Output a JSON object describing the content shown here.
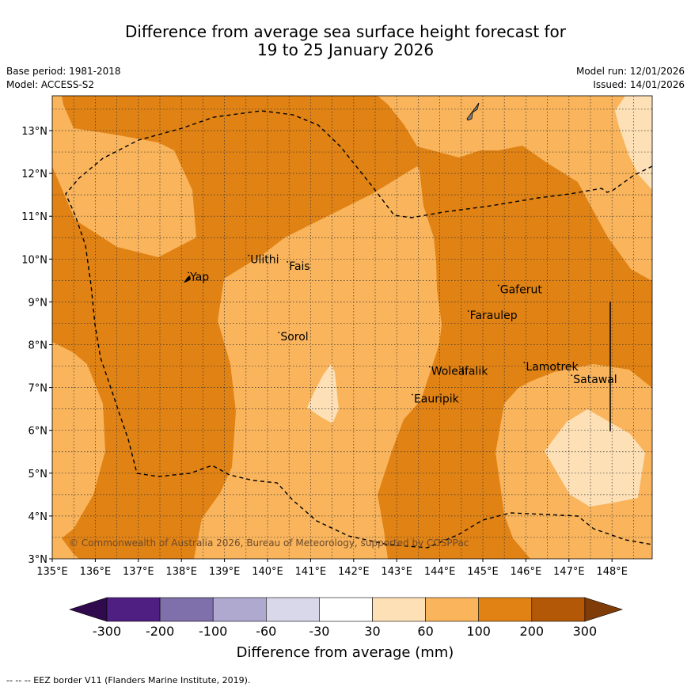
{
  "title_line1": "Difference from average sea surface height forecast for",
  "title_line2": "19 to 25 January 2026",
  "base_period": "Base period: 1981-2018",
  "model": "Model: ACCESS-S2",
  "model_run": "Model run: 12/01/2026",
  "issued": "Issued: 14/01/2026",
  "copyright": "© Commonwealth of Australia 2026, Bureau of Meteorology, supported by COSPPac",
  "footer": "--  --  -- EEZ border V11 (Flanders Marine Institute, 2019).",
  "lon_ticks": [
    "135°E",
    "136°E",
    "137°E",
    "138°E",
    "139°E",
    "140°E",
    "141°E",
    "142°E",
    "143°E",
    "144°E",
    "145°E",
    "146°E",
    "147°E",
    "148°E"
  ],
  "lat_ticks": [
    "3°N",
    "4°N",
    "5°N",
    "6°N",
    "7°N",
    "8°N",
    "9°N",
    "10°N",
    "11°N",
    "12°N",
    "13°N"
  ],
  "places": [
    {
      "name": "Yap",
      "lon": 138.2,
      "lat": 9.5
    },
    {
      "name": "Ulithi",
      "lon": 139.6,
      "lat": 9.9
    },
    {
      "name": "Fais",
      "lon": 140.5,
      "lat": 9.75
    },
    {
      "name": "Gaferut",
      "lon": 145.4,
      "lat": 9.2
    },
    {
      "name": "Faraulep",
      "lon": 144.7,
      "lat": 8.6
    },
    {
      "name": "Sorol",
      "lon": 140.3,
      "lat": 8.1
    },
    {
      "name": "Woleai",
      "lon": 143.8,
      "lat": 7.3
    },
    {
      "name": "Ifalik",
      "lon": 144.5,
      "lat": 7.3
    },
    {
      "name": "Lamotrek",
      "lon": 146.0,
      "lat": 7.4
    },
    {
      "name": "Satawal",
      "lon": 147.1,
      "lat": 7.1
    },
    {
      "name": "Eauripik",
      "lon": 143.4,
      "lat": 6.65
    }
  ],
  "colors": {
    "c_300n": "#2f0b4d",
    "c_200n": "#4f1f82",
    "c_100n": "#7f6faa",
    "c_60n": "#afa8cf",
    "c_30n": "#d9d8eb",
    "c_0": "#ffffff",
    "c_30": "#fde0b6",
    "c_60": "#f9b45c",
    "c_100": "#e08214",
    "c_200": "#b35806",
    "c_300": "#7f3b08"
  },
  "colorbar": {
    "labels": [
      "-300",
      "-200",
      "-100",
      "-60",
      "-30",
      "30",
      "60",
      "100",
      "200",
      "300"
    ],
    "title": "Difference from average (mm)"
  }
}
